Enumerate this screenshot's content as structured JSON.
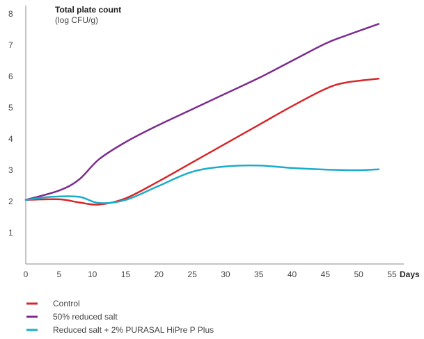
{
  "chart_data": {
    "type": "line",
    "title": "Total plate count",
    "ylabel": "(log CFU/g)",
    "xlabel": "Days",
    "xlim": [
      0,
      55
    ],
    "ylim": [
      0,
      8
    ],
    "x_ticks": [
      0,
      5,
      10,
      15,
      20,
      25,
      30,
      35,
      40,
      45,
      50,
      55
    ],
    "y_ticks": [
      1,
      2,
      3,
      4,
      5,
      6,
      7,
      8
    ],
    "grid": false,
    "legend_position": "bottom-left",
    "series": [
      {
        "name": "Control",
        "color": "#d7262a",
        "points": [
          [
            0,
            2.05
          ],
          [
            5,
            2.07
          ],
          [
            8,
            1.97
          ],
          [
            11,
            1.9
          ],
          [
            15,
            2.1
          ],
          [
            20,
            2.65
          ],
          [
            25,
            3.25
          ],
          [
            30,
            3.85
          ],
          [
            35,
            4.45
          ],
          [
            40,
            5.05
          ],
          [
            45,
            5.6
          ],
          [
            48,
            5.8
          ],
          [
            53,
            5.93
          ]
        ]
      },
      {
        "name": "50% reduced salt",
        "color": "#7b2c8e",
        "points": [
          [
            0,
            2.05
          ],
          [
            5,
            2.35
          ],
          [
            8,
            2.7
          ],
          [
            11,
            3.35
          ],
          [
            15,
            3.9
          ],
          [
            20,
            4.45
          ],
          [
            25,
            4.95
          ],
          [
            30,
            5.45
          ],
          [
            35,
            5.95
          ],
          [
            40,
            6.5
          ],
          [
            45,
            7.05
          ],
          [
            48,
            7.3
          ],
          [
            53,
            7.68
          ]
        ]
      },
      {
        "name": "Reduced salt + 2% PURASAL HiPre P Plus",
        "color": "#1aaccc",
        "points": [
          [
            0,
            2.05
          ],
          [
            4,
            2.15
          ],
          [
            8,
            2.15
          ],
          [
            11,
            1.95
          ],
          [
            15,
            2.05
          ],
          [
            20,
            2.5
          ],
          [
            25,
            2.95
          ],
          [
            30,
            3.12
          ],
          [
            35,
            3.15
          ],
          [
            40,
            3.07
          ],
          [
            45,
            3.02
          ],
          [
            50,
            3.0
          ],
          [
            53,
            3.03
          ]
        ]
      }
    ]
  }
}
